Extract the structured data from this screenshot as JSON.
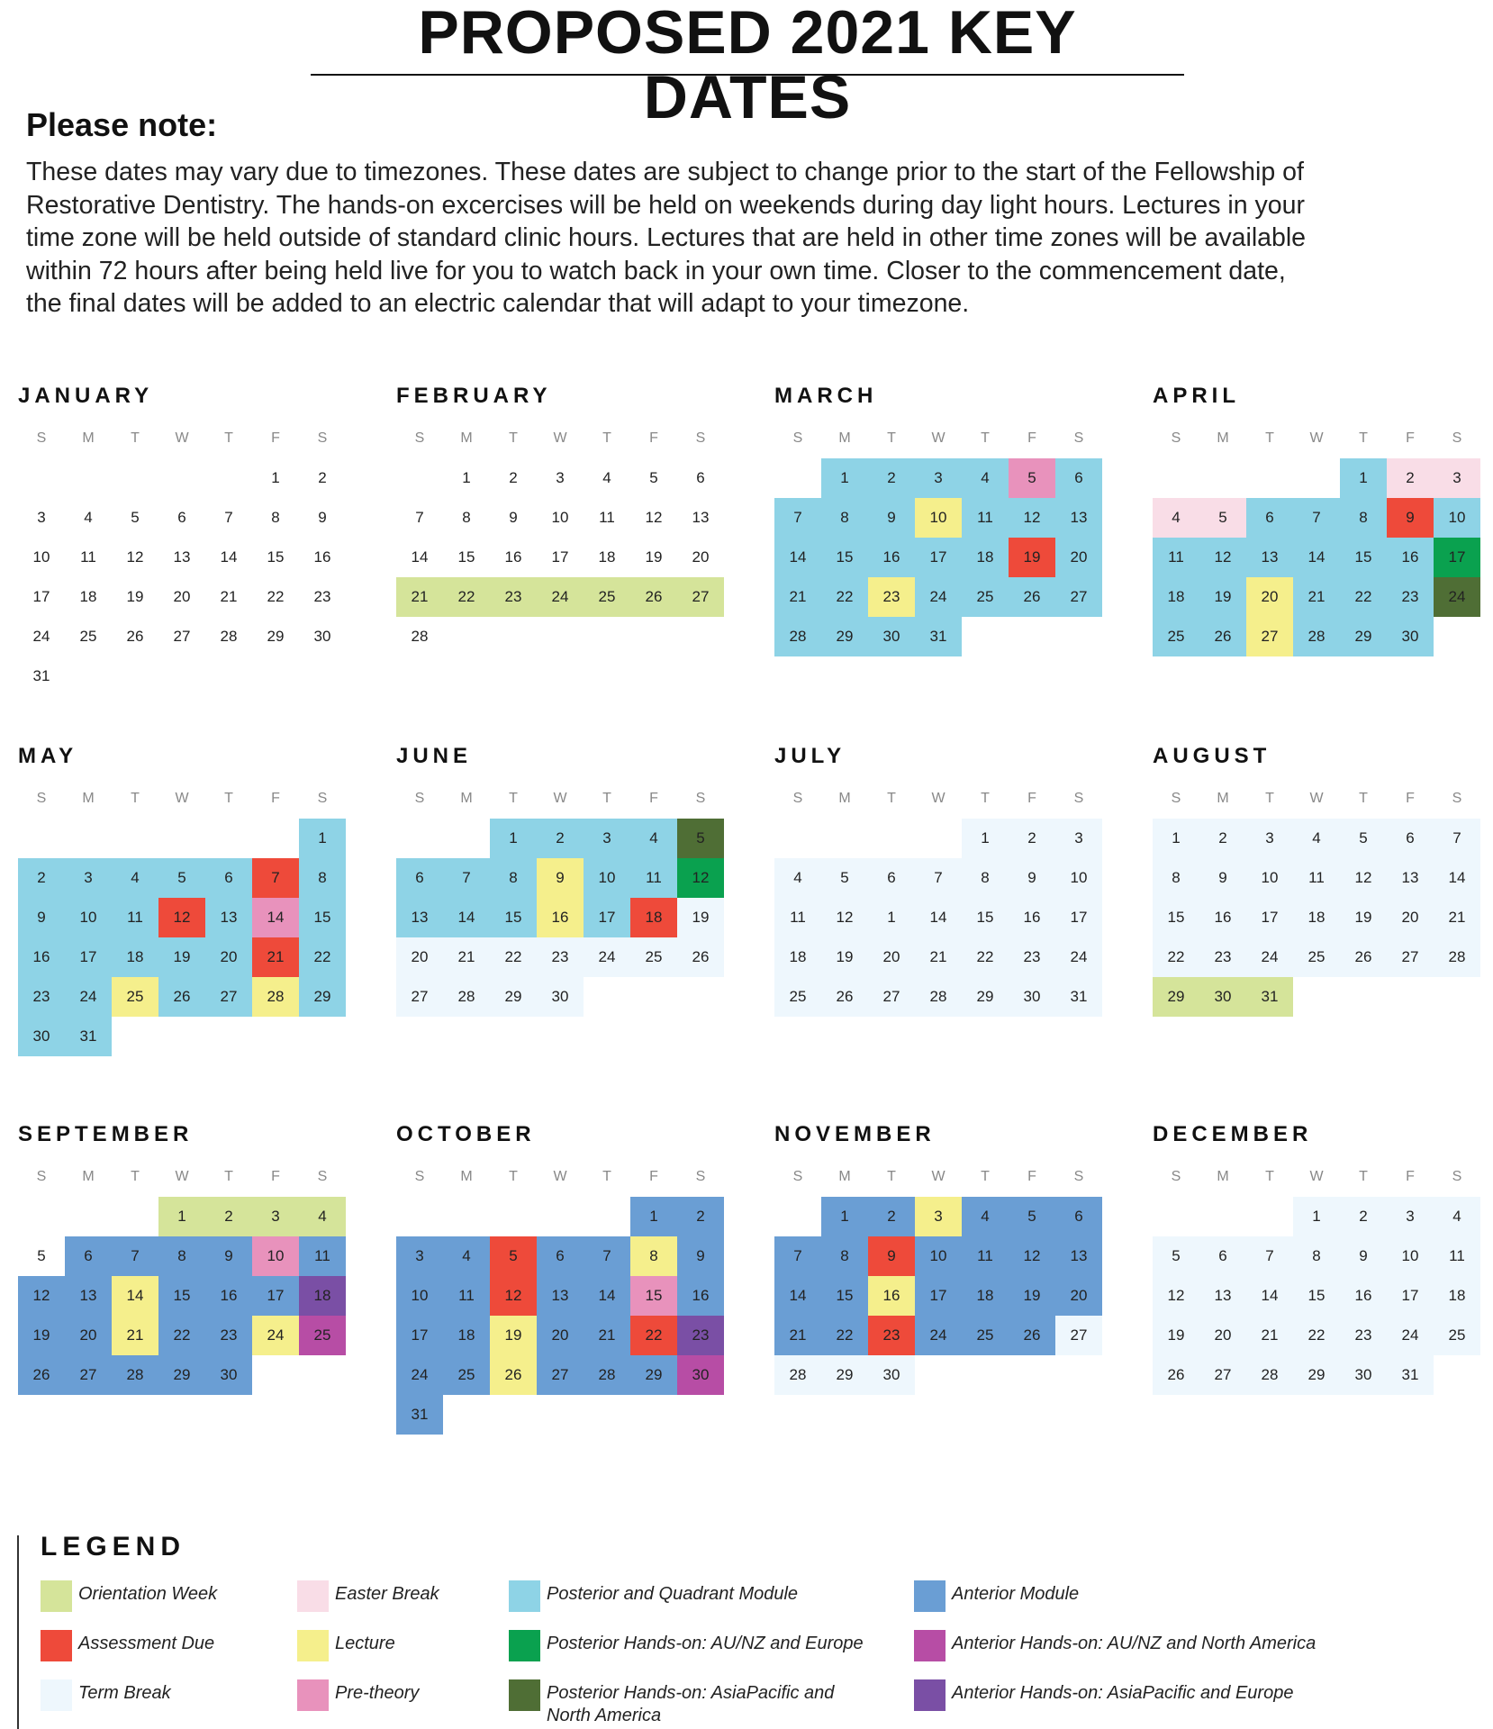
{
  "title": "PROPOSED 2021 KEY DATES",
  "note": {
    "heading": "Please note:",
    "lines": [
      "These dates may vary due to timezones. These dates are subject to change prior to the start of the Fellowship of",
      "Restorative Dentistry. The hands-on excercises will be held on weekends during day light hours. Lectures in your",
      "time zone will be held outside of standard clinic hours. Lectures that are held in other time zones will be available",
      "within 72 hours after being held live for you to watch back in your own time. Closer to the commencement date,",
      "the final dates will be added to an electric calendar that will adapt to your timezone."
    ]
  },
  "weekday_labels": [
    "S",
    "M",
    "T",
    "W",
    "T",
    "F",
    "S"
  ],
  "colors": {
    "OR": "#d5e49a",
    "EB": "#f9dde7",
    "PQ": "#8ed3e6",
    "AM": "#6a9ed4",
    "AD": "#ee4a3a",
    "LE": "#f5ef8c",
    "PH": "#0aa14f",
    "AH": "#b74da5",
    "TB": "#eef7fd",
    "PT": "#e892bc",
    "PA": "#4f6e35",
    "AA": "#7a4fa5"
  },
  "months": [
    {
      "name": "JANUARY",
      "start": 5,
      "days": 31,
      "fill": "",
      "overrides": {}
    },
    {
      "name": "FEBRUARY",
      "start": 1,
      "days": 28,
      "fill": "",
      "overrides": {
        "21": "OR",
        "22": "OR",
        "23": "OR",
        "24": "OR",
        "25": "OR",
        "26": "OR",
        "27": "OR"
      }
    },
    {
      "name": "MARCH",
      "start": 1,
      "days": 31,
      "fill": "PQ",
      "overrides": {
        "5": "PT",
        "10": "LE",
        "19": "AD",
        "23": "LE"
      }
    },
    {
      "name": "APRIL",
      "start": 4,
      "days": 30,
      "fill": "PQ",
      "overrides": {
        "2": "EB",
        "3": "EB",
        "4": "EB",
        "5": "EB",
        "9": "AD",
        "17": "PH",
        "20": "LE",
        "24": "PA",
        "27": "LE"
      }
    },
    {
      "name": "MAY",
      "start": 6,
      "days": 31,
      "fill": "PQ",
      "overrides": {
        "7": "AD",
        "12": "AD",
        "14": "PT",
        "21": "AD",
        "25": "LE",
        "28": "LE"
      }
    },
    {
      "name": "JUNE",
      "start": 2,
      "days": 30,
      "fill": "PQ",
      "overrides": {
        "5": "PA",
        "9": "LE",
        "12": "PH",
        "16": "LE",
        "18": "AD",
        "19": "TB",
        "20": "TB",
        "21": "TB",
        "22": "TB",
        "23": "TB",
        "24": "TB",
        "25": "TB",
        "26": "TB",
        "27": "TB",
        "28": "TB",
        "29": "TB",
        "30": "TB"
      }
    },
    {
      "name": "JULY",
      "start": 4,
      "days": 31,
      "fill": "TB",
      "overrides": {},
      "labels": {
        "13": "1"
      }
    },
    {
      "name": "AUGUST",
      "start": 0,
      "days": 31,
      "fill": "TB",
      "overrides": {
        "29": "OR",
        "30": "OR",
        "31": "OR"
      }
    },
    {
      "name": "SEPTEMBER",
      "start": 3,
      "days": 30,
      "fill": "AM",
      "overrides": {
        "1": "OR",
        "2": "OR",
        "3": "OR",
        "4": "OR",
        "5": "NONE",
        "10": "PT",
        "14": "LE",
        "18": "AA",
        "21": "LE",
        "24": "LE",
        "25": "AH"
      }
    },
    {
      "name": "OCTOBER",
      "start": 5,
      "days": 31,
      "fill": "AM",
      "overrides": {
        "5": "AD",
        "8": "LE",
        "12": "AD",
        "15": "PT",
        "19": "LE",
        "22": "AD",
        "23": "AA",
        "26": "LE",
        "30": "AH"
      }
    },
    {
      "name": "NOVEMBER",
      "start": 1,
      "days": 30,
      "fill": "AM",
      "overrides": {
        "3": "LE",
        "9": "AD",
        "16": "LE",
        "23": "AD",
        "27": "TB",
        "28": "TB",
        "29": "TB",
        "30": "TB"
      }
    },
    {
      "name": "DECEMBER",
      "start": 3,
      "days": 31,
      "fill": "TB",
      "overrides": {}
    }
  ],
  "legend": {
    "title": "LEGEND",
    "items": [
      {
        "key": "OR",
        "label": "Orientation Week"
      },
      {
        "key": "AD",
        "label": "Assessment Due"
      },
      {
        "key": "TB",
        "label": "Term Break"
      },
      {
        "key": "EB",
        "label": "Easter Break"
      },
      {
        "key": "LE",
        "label": "Lecture"
      },
      {
        "key": "PT",
        "label": "Pre-theory"
      },
      {
        "key": "PQ",
        "label": "Posterior and Quadrant Module"
      },
      {
        "key": "PH",
        "label": "Posterior Hands-on: AU/NZ and Europe"
      },
      {
        "key": "PA",
        "label": "Posterior Hands-on: AsiaPacific and North America"
      },
      {
        "key": "AM",
        "label": "Anterior Module"
      },
      {
        "key": "AH",
        "label": "Anterior Hands-on: AU/NZ and North America"
      },
      {
        "key": "AA",
        "label": "Anterior Hands-on: AsiaPacific and Europe"
      }
    ]
  }
}
